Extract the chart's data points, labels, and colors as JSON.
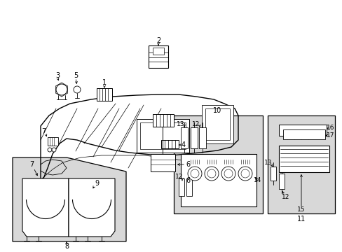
{
  "bg_color": "#ffffff",
  "line_color": "#000000",
  "gray_fill": "#d8d8d8",
  "figsize": [
    4.89,
    3.6
  ],
  "dpi": 100
}
